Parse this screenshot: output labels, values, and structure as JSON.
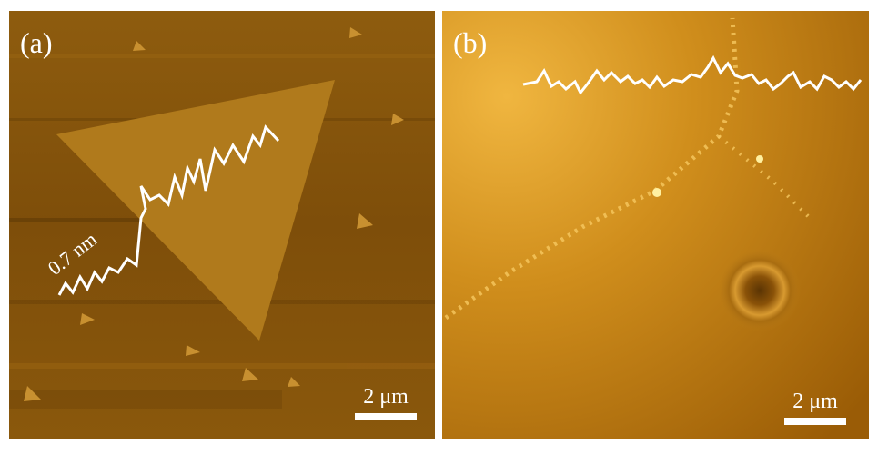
{
  "panels": [
    {
      "label": "(a)",
      "annotation": "0.7 nm",
      "scale_bar": "2 μm"
    },
    {
      "label": "(b)",
      "scale_bar": "2 μm"
    }
  ]
}
